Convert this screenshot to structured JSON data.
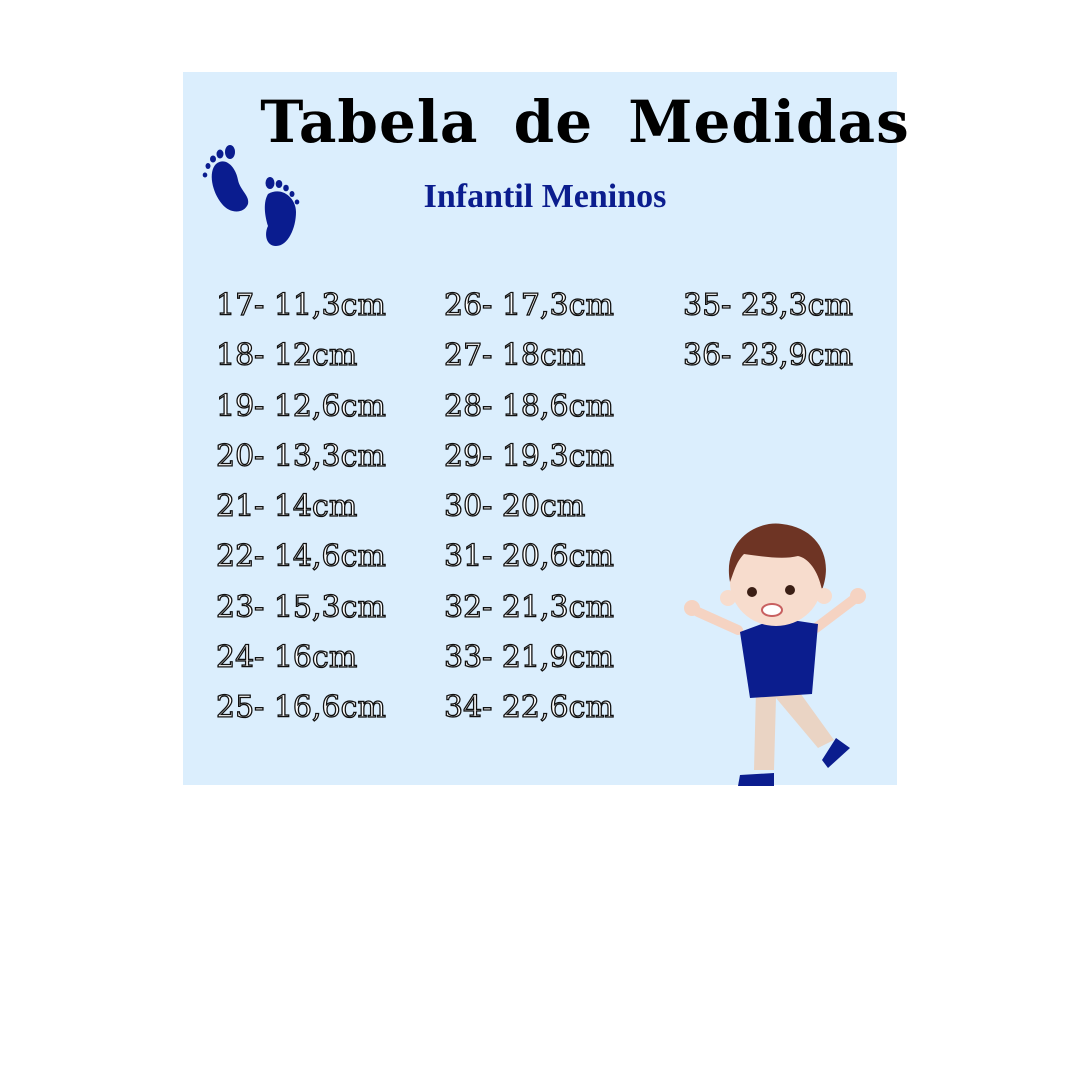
{
  "header": {
    "title": "Tabela de Medidas",
    "subtitle": "Infantil Meninos"
  },
  "colors": {
    "background": "#dbeefd",
    "accent": "#0b1d8e",
    "text": "#000000"
  },
  "icons": [
    "footprints-icon",
    "boy-illustration"
  ],
  "sizes": {
    "col1": [
      "17- 11,3cm",
      "18- 12cm",
      "19- 12,6cm",
      "20- 13,3cm",
      "21- 14cm",
      "22- 14,6cm",
      "23- 15,3cm",
      "24- 16cm",
      "25- 16,6cm"
    ],
    "col2": [
      "26- 17,3cm",
      "27- 18cm",
      "28- 18,6cm",
      "29- 19,3cm",
      "30- 20cm",
      "31- 20,6cm",
      "32- 21,3cm",
      "33- 21,9cm",
      "34- 22,6cm"
    ],
    "col3": [
      "35- 23,3cm",
      "36- 23,9cm"
    ]
  }
}
